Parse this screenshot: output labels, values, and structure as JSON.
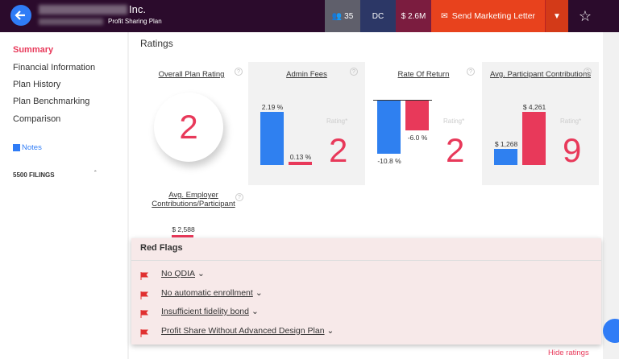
{
  "header": {
    "title": "Inc.",
    "subtitle": "Profit Sharing Plan",
    "badges": [
      "35",
      "DC",
      "$ 2.6M"
    ],
    "action": "Send Marketing Letter"
  },
  "sidebar": {
    "items": [
      "Summary",
      "Financial Information",
      "Plan History",
      "Plan Benchmarking",
      "Comparison"
    ],
    "notes": "Notes",
    "filings": "5500 FILINGS"
  },
  "ratings": {
    "title": "Ratings",
    "rating_label": "Rating*",
    "cards": [
      {
        "title": "Overall Plan Rating",
        "rating": 2
      },
      {
        "title": "Admin Fees",
        "bars": [
          {
            "value": 2.19,
            "label": "2.19 %"
          },
          {
            "value": 0.13,
            "label": "0.13 %"
          }
        ],
        "rating": 2
      },
      {
        "title": "Rate Of Return",
        "bars": [
          {
            "value": -10.8,
            "label": "-10.8 %"
          },
          {
            "value": -6.0,
            "label": "-6.0 %"
          }
        ],
        "rating": 2
      },
      {
        "title": "Avg. Participant Contributions",
        "bars": [
          {
            "value": 1268,
            "label": "$ 1,268"
          },
          {
            "value": 4261,
            "label": "$ 4,261"
          }
        ],
        "rating": 9
      }
    ],
    "employer": {
      "title": "Avg. Employer Contributions/Participant",
      "bar": {
        "value": 2588,
        "label": "$ 2,588"
      }
    }
  },
  "red_flags": {
    "title": "Red Flags",
    "items": [
      "No QDIA",
      "No automatic enrollment",
      "Insufficient fidelity bond",
      "Profit Share Without Advanced Design Plan"
    ]
  },
  "hide_ratings": "Hide ratings"
}
